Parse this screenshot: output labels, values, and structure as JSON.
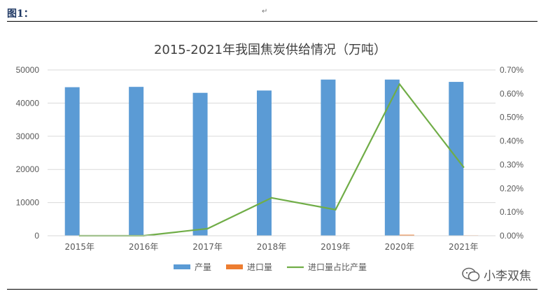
{
  "document": {
    "label": "图1：",
    "paragraph_mark": "↵",
    "watermark": "小李双焦"
  },
  "colors": {
    "production": "#5b9bd5",
    "import": "#ed7d31",
    "ratio": "#70ad47",
    "grid": "#d9d9d9",
    "text": "#595959"
  },
  "chart_data": {
    "type": "bar",
    "title": "2015-2021年我国焦炭供给情况（万吨）",
    "categories": [
      "2015年",
      "2016年",
      "2017年",
      "2018年",
      "2019年",
      "2020年",
      "2021年"
    ],
    "series": [
      {
        "name": "产量",
        "type": "bar",
        "axis": "left",
        "values": [
          44800,
          44900,
          43100,
          43800,
          47100,
          47100,
          46400
        ]
      },
      {
        "name": "进口量",
        "type": "bar",
        "axis": "left",
        "values": [
          1,
          3,
          14,
          70,
          51,
          302,
          134
        ]
      },
      {
        "name": "进口量占比产量",
        "type": "line",
        "axis": "right",
        "values": [
          0.0,
          0.0,
          0.0003,
          0.0016,
          0.0011,
          0.0064,
          0.0029
        ]
      }
    ],
    "left_axis": {
      "ylim": [
        0,
        50000
      ],
      "ticks": [
        "0",
        "10000",
        "20000",
        "30000",
        "40000",
        "50000"
      ]
    },
    "right_axis": {
      "ylim": [
        0,
        0.007
      ],
      "ticks": [
        "0.00%",
        "0.10%",
        "0.20%",
        "0.30%",
        "0.40%",
        "0.50%",
        "0.60%",
        "0.70%"
      ]
    },
    "grid": true,
    "legend": "bottom",
    "xlabel": "",
    "ylabel": ""
  }
}
